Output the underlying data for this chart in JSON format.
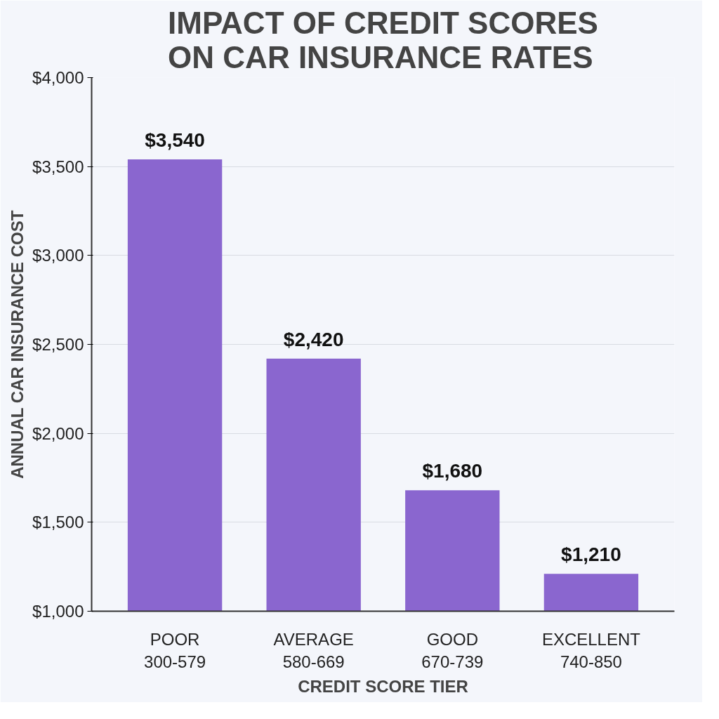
{
  "chart_data": {
    "type": "bar",
    "title": "IMPACT OF CREDIT SCORES\nON CAR INSURANCE RATES",
    "xlabel": "CREDIT SCORE TIER",
    "ylabel": "ANNUAL CAR INSURANCE COST",
    "categories": [
      "POOR\n300-579",
      "AVERAGE\n580-669",
      "GOOD\n670-739",
      "EXCELLENT\n740-850"
    ],
    "values": [
      3540,
      2420,
      1680,
      1210
    ],
    "value_labels": [
      "$3,540",
      "$2,420",
      "$1,680",
      "$1,210"
    ],
    "color": "#8a66cf",
    "ylim": [
      1000,
      4000
    ],
    "yticks": [
      {
        "value": 1000,
        "label": "$1,000"
      },
      {
        "value": 1500,
        "label": "$1,500"
      },
      {
        "value": 2000,
        "label": "$2,000"
      },
      {
        "value": 2500,
        "label": "$2,500"
      },
      {
        "value": 3000,
        "label": "$3,000"
      },
      {
        "value": 3500,
        "label": "$3,500"
      },
      {
        "value": 4000,
        "label": "$4,000"
      }
    ],
    "grid": "y"
  }
}
